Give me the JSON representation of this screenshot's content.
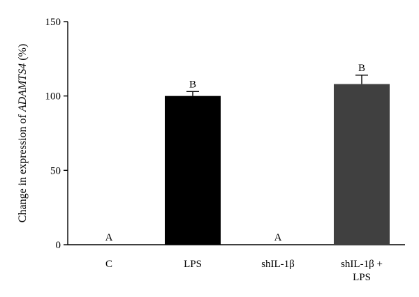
{
  "chart_data": {
    "type": "bar",
    "categories": [
      {
        "main": "C",
        "sub": ""
      },
      {
        "main": "LPS",
        "sub": ""
      },
      {
        "main": "shIL-1β",
        "sub": ""
      },
      {
        "main": "shIL-1β +",
        "sub": "LPS"
      }
    ],
    "values": [
      0,
      100,
      0,
      108
    ],
    "error_upper": [
      0,
      3,
      0,
      6
    ],
    "significance_letters": [
      "A",
      "B",
      "A",
      "B"
    ],
    "bar_colors": [
      "#000000",
      "#000000",
      "#000000",
      "#404040"
    ],
    "ylabel": {
      "prefix": "Change in expression of ",
      "gene": "ADAMTS4",
      "suffix": " (%)"
    },
    "xlabel": "",
    "ylim": [
      0,
      150
    ],
    "yticks": [
      0,
      50,
      100,
      150
    ],
    "grid": false,
    "legend": "none"
  }
}
